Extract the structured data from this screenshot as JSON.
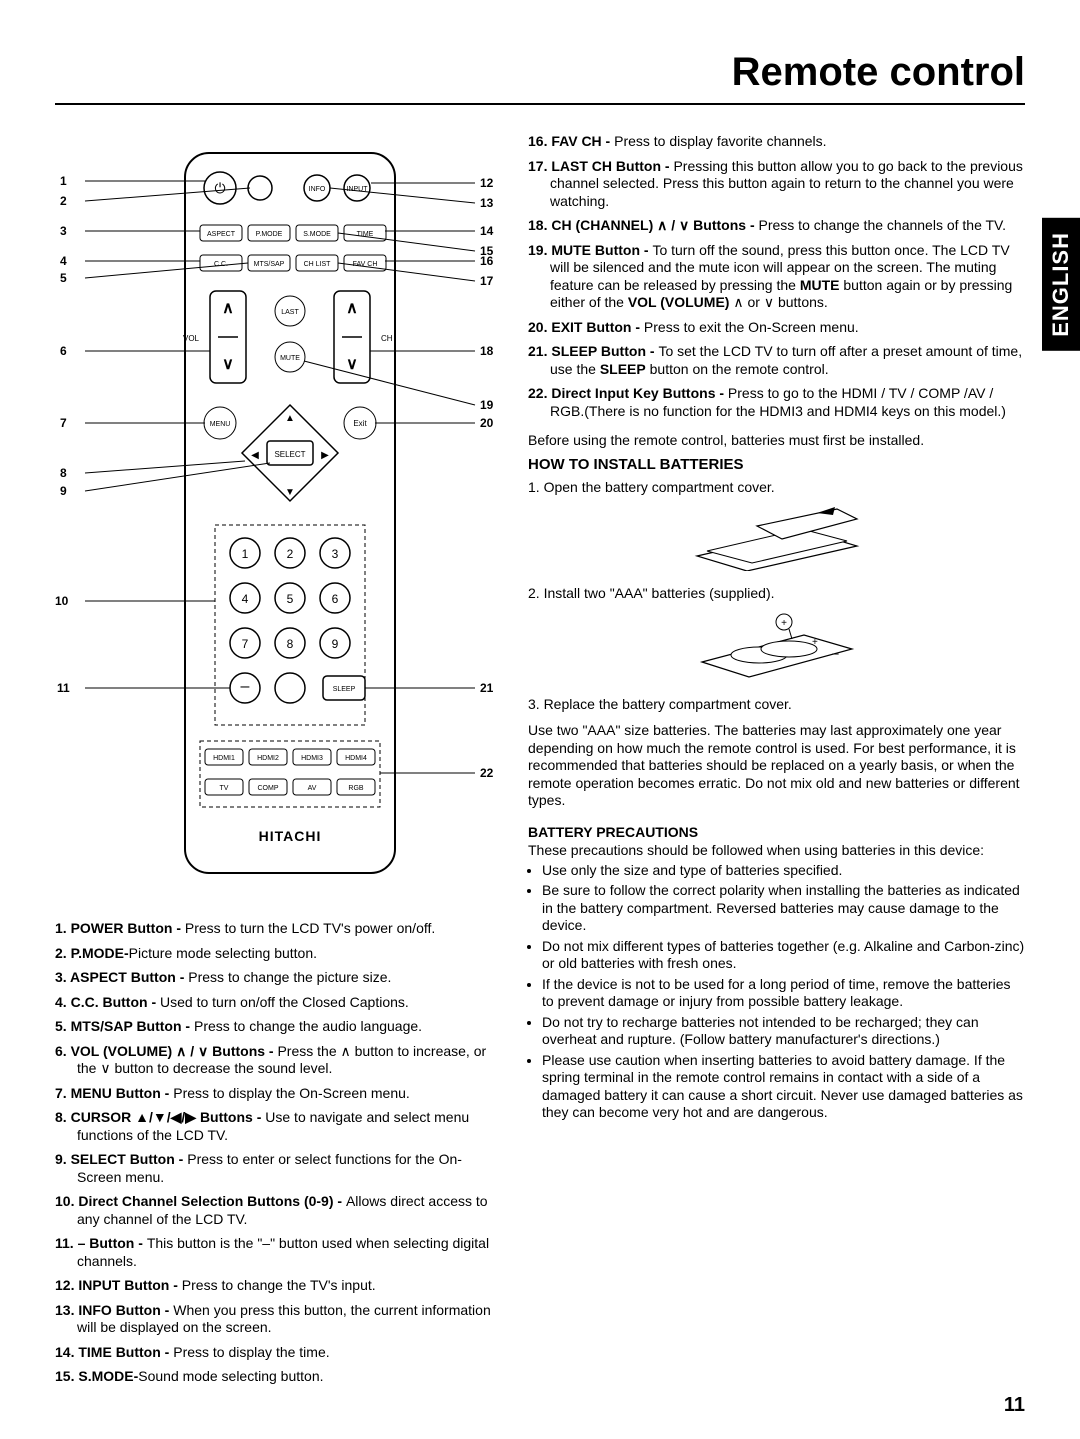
{
  "title": "Remote control",
  "sideTab": "ENGLISH",
  "pageNum": "11",
  "remote": {
    "body_stroke": "#000000",
    "body_fill": "#ffffff",
    "line_color": "#000000",
    "brand": "HITACHI",
    "leftNums": [
      "1",
      "2",
      "3",
      "4",
      "5",
      "6",
      "7",
      "8",
      "9",
      "10",
      "11"
    ],
    "rightNums": [
      "12",
      "13",
      "14",
      "15",
      "16",
      "17",
      "18",
      "19",
      "20",
      "21",
      "22"
    ],
    "row3": [
      "ASPECT",
      "P.MODE",
      "S.MODE",
      "TIME"
    ],
    "row4": [
      "C.C.",
      "MTS/SAP",
      "CH LIST",
      "FAV CH"
    ],
    "vol_label": "VOL",
    "ch_label": "CH",
    "last": "LAST",
    "mute": "MUTE",
    "menu": "MENU",
    "exit": "Exit",
    "select": "SELECT",
    "info": "INFO",
    "input": "INPUT",
    "sleep": "SLEEP",
    "numbers": [
      "1",
      "2",
      "3",
      "4",
      "5",
      "6",
      "7",
      "8",
      "9"
    ],
    "minus": "–",
    "hdmiRow": [
      "HDMI1",
      "HDMI2",
      "HDMI3",
      "HDMI4"
    ],
    "bottomRow": [
      "TV",
      "COMP",
      "AV",
      "RGB"
    ]
  },
  "leftList": [
    {
      "n": "1.",
      "label": "POWER Button - ",
      "text": "Press to turn the LCD TV's power on/off."
    },
    {
      "n": "2.",
      "label": "P.MODE-",
      "text": "Picture mode selecting button."
    },
    {
      "n": "3.",
      "label": "ASPECT Button - ",
      "text": "Press to change the picture size."
    },
    {
      "n": "4.",
      "label": "C.C. Button - ",
      "text": " Used to turn on/off the Closed Captions."
    },
    {
      "n": "5.",
      "label": "MTS/SAP Button - ",
      "text": "Press to change the audio language."
    },
    {
      "n": "6.",
      "label": "VOL (VOLUME) ∧ / ∨ Buttons - ",
      "text": "Press the ∧ button to increase, or the ∨ button to decrease the sound level."
    },
    {
      "n": "7.",
      "label": "MENU Button - ",
      "text": "Press to display the On-Screen menu."
    },
    {
      "n": "8.",
      "label": "CURSOR ▲/▼/◀/▶ Buttons - ",
      "text": "Use to navigate and select menu functions of the LCD TV."
    },
    {
      "n": "9.",
      "label": "SELECT Button - ",
      "text": "Press to enter or select functions for the On-Screen menu."
    },
    {
      "n": "10.",
      "label": "Direct Channel Selection Buttons (0-9) - ",
      "text": "Allows direct access to any channel of the LCD TV."
    },
    {
      "n": "11.",
      "label": "– Button - ",
      "text": "This button is the \"–\" button used when selecting digital channels."
    },
    {
      "n": "12.",
      "label": "INPUT Button - ",
      "text": "Press to change the TV's input."
    },
    {
      "n": "13.",
      "label": "INFO Button - ",
      "text": "When you press this button, the current information will be displayed on the screen."
    },
    {
      "n": "14.",
      "label": "TIME Button - ",
      "text": "Press to display the time."
    },
    {
      "n": "15.",
      "label": "S.MODE-",
      "text": "Sound mode selecting button."
    }
  ],
  "rightList": [
    {
      "n": "16.",
      "label": "FAV CH - ",
      "text": "Press to display favorite channels."
    },
    {
      "n": "17.",
      "label": "LAST CH Button - ",
      "text": "Pressing this button allow you to go back to the previous channel selected. Press this button again to return to the channel you were watching."
    },
    {
      "n": "18.",
      "label": "CH (CHANNEL) ∧ / ∨ Buttons - ",
      "text": "Press to change the channels of the TV."
    },
    {
      "n": "19.",
      "label": "MUTE Button - ",
      "text": "To turn off the sound, press this button once. The LCD TV will be silenced and the mute icon will appear on the screen. The muting feature can be released by pressing the <b>MUTE</b> button again or by pressing either of the <b>VOL (VOLUME)</b> ∧ or ∨ buttons."
    },
    {
      "n": "20.",
      "label": "EXIT Button - ",
      "text": "Press to exit the On-Screen menu."
    },
    {
      "n": "21.",
      "label": "SLEEP Button - ",
      "text": "To set the LCD TV to turn off after a preset amount of time, use the <b>SLEEP</b> button on the remote control."
    },
    {
      "n": "22.",
      "label": "Direct Input Key Buttons - ",
      "text": "Press to go to the HDMI / TV / COMP /AV / RGB.(There is no function for the HDMI3 and HDMI4 keys on this model.)"
    }
  ],
  "before": "Before using the remote control, batteries must first be installed.",
  "howtoTitle": "HOW TO INSTALL BATTERIES",
  "howtoSteps": [
    "1. Open the battery compartment cover.",
    "2. Install two \"AAA\" batteries (supplied).",
    "3. Replace the battery compartment cover."
  ],
  "usePara": "Use two \"AAA\" size batteries. The batteries may last approximately one year depending on how much the remote control is used. For best performance, it is recommended that batteries should be replaced on a yearly basis, or when the remote operation becomes erratic. Do not mix old and new batteries or different types.",
  "precTitle": "BATTERY PRECAUTIONS",
  "precLead": "These precautions should be followed when using batteries in this device:",
  "precautions": [
    "Use only the size and type of batteries specified.",
    "Be sure to follow the correct polarity when installing the batteries as indicated in the battery compartment. Reversed batteries may cause damage to the device.",
    "Do not mix different types of batteries together (e.g. Alkaline and Carbon-zinc) or old batteries with fresh ones.",
    "If the device is not to be used for a long period of time, remove the batteries to prevent damage or injury from possible battery leakage.",
    "Do not try to recharge batteries not intended to be recharged; they can overheat and rupture. (Follow battery manufacturer's directions.)",
    "Please use caution when inserting batteries to avoid battery damage. If the spring terminal in the remote control remains in contact with a side of a damaged battery it can cause a short circuit. Never use damaged batteries as they can become very hot and are dangerous."
  ]
}
